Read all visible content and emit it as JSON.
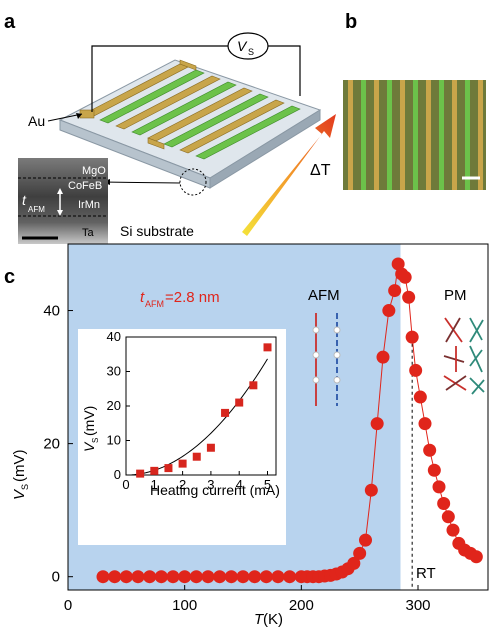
{
  "panels": {
    "a": "a",
    "b": "b",
    "c": "c"
  },
  "panel_a": {
    "au_label": "Au",
    "vs_label": "V",
    "vs_sub": "S",
    "delta_t_label": "ΔT",
    "substrate_label": "Si substrate",
    "layers": [
      "MgO",
      "CoFeB",
      "IrMn",
      "Ta"
    ],
    "tafm_label": "t",
    "tafm_sub": "AFM"
  },
  "panel_c": {
    "annotation_prefix": "t",
    "annotation_sub": "AFM",
    "annotation_value": "=2.8 nm",
    "afm_label": "AFM",
    "pm_label": "PM",
    "rt_label": "RT",
    "xlabel_var": "T",
    "xlabel_unit": " (K)",
    "ylabel_var": "V",
    "ylabel_sub": "S",
    "ylabel_unit": " (mV)",
    "inset_xlabel": "Heating current (mA)",
    "inset_ylabel_var": "V",
    "inset_ylabel_sub": "S",
    "inset_ylabel_unit": " (mV)"
  },
  "colors": {
    "afm_shading": "#b8d3ee",
    "data_red": "#e0251b",
    "gold": "#c8a54a",
    "green": "#6cc24a",
    "inset_square": "#d7261e"
  },
  "chart_data": [
    {
      "type": "scatter",
      "title": "",
      "xlabel": "T (K)",
      "ylabel": "VS (mV)",
      "xlim": [
        0,
        360
      ],
      "ylim": [
        -2,
        50
      ],
      "x_ticks": [
        0,
        100,
        200,
        300
      ],
      "y_ticks": [
        0,
        20,
        40
      ],
      "shaded_region": {
        "label": "AFM",
        "x_range": [
          0,
          285
        ]
      },
      "reference_line": {
        "label": "RT",
        "x": 295
      },
      "series": [
        {
          "x": [
            30,
            40,
            50,
            60,
            70,
            80,
            90,
            100,
            110,
            120,
            130,
            140,
            150,
            160,
            170,
            180,
            190,
            200,
            205,
            210,
            215,
            220,
            225,
            230,
            235,
            240,
            245,
            250,
            255,
            260,
            265,
            270,
            275,
            280,
            283,
            286,
            289,
            292,
            295,
            298,
            302,
            306,
            310,
            314,
            318,
            322,
            326,
            330,
            335,
            340,
            345,
            350
          ],
          "y": [
            0,
            0,
            0,
            0,
            0,
            0,
            0,
            0,
            0,
            0,
            0,
            0,
            0,
            0,
            0,
            0,
            0,
            0,
            0,
            0,
            0,
            0.1,
            0.2,
            0.4,
            0.7,
            1.2,
            2.0,
            3.5,
            5.5,
            13,
            23,
            33,
            40,
            43,
            47,
            45.5,
            45,
            42,
            36,
            31,
            27,
            23,
            19,
            16,
            13.5,
            11,
            9,
            7,
            5,
            4,
            3.5,
            3
          ]
        }
      ]
    },
    {
      "type": "scatter",
      "title": "",
      "xlabel": "Heating current (mA)",
      "ylabel": "VS (mV)",
      "xlim": [
        0,
        5.3
      ],
      "ylim": [
        0,
        40
      ],
      "x_ticks": [
        0,
        1,
        2,
        3,
        4,
        5
      ],
      "y_ticks": [
        0,
        10,
        20,
        30,
        40
      ],
      "series": [
        {
          "x": [
            0.5,
            1.0,
            1.5,
            2.0,
            2.5,
            3.0,
            3.5,
            4.0,
            4.5,
            5.0
          ],
          "y": [
            0.4,
            1.2,
            2.0,
            3.3,
            5.3,
            7.9,
            18,
            21,
            26,
            37
          ]
        }
      ],
      "fit_curve": "quadratic"
    }
  ]
}
